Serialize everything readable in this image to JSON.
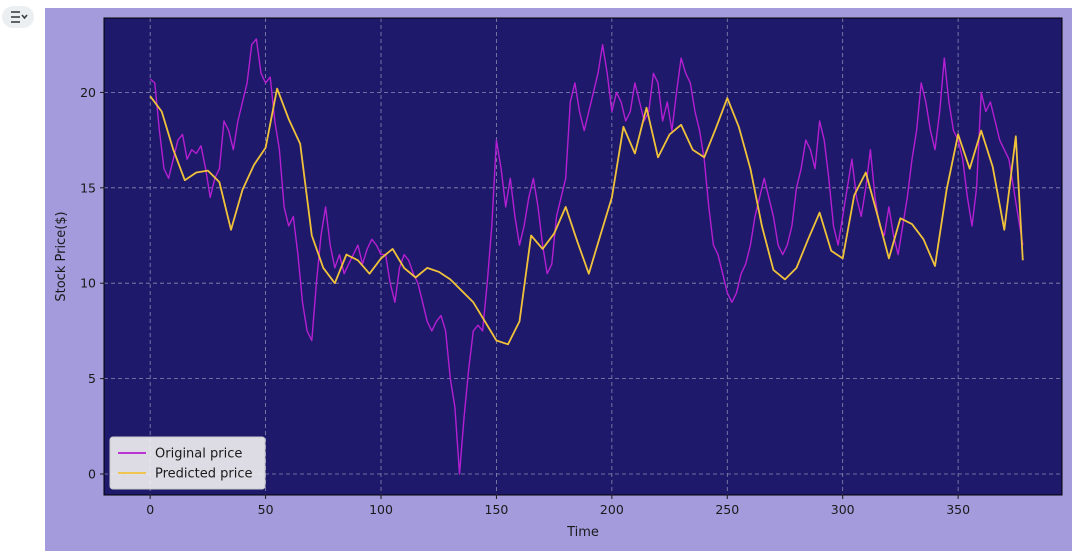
{
  "notebook": {
    "output_toggle_icon": "output-collapse-icon"
  },
  "chart_data": {
    "type": "line",
    "title": "",
    "xlabel": "Time",
    "ylabel": "Stock Price($)",
    "xlim": [
      -20,
      395
    ],
    "ylim": [
      -1.1,
      23.9
    ],
    "xticks": [
      0,
      50,
      100,
      150,
      200,
      250,
      300,
      350
    ],
    "yticks": [
      0,
      5,
      10,
      15,
      20
    ],
    "grid": true,
    "legend_position": "lower-left",
    "colors": {
      "figure_background": "#a49bdd",
      "axes_background": "#1e196b",
      "grid": "#8a8ab0",
      "original": "#b41fd1",
      "predicted": "#f0c23a"
    },
    "series": [
      {
        "name": "Original price",
        "color": "#b41fd1",
        "x": [
          0,
          2,
          4,
          6,
          8,
          10,
          12,
          14,
          16,
          18,
          20,
          22,
          24,
          26,
          28,
          30,
          32,
          34,
          36,
          38,
          40,
          42,
          44,
          46,
          48,
          50,
          52,
          54,
          56,
          58,
          60,
          62,
          64,
          66,
          68,
          70,
          72,
          74,
          76,
          78,
          80,
          82,
          84,
          86,
          88,
          90,
          92,
          94,
          96,
          98,
          100,
          102,
          104,
          106,
          108,
          110,
          112,
          114,
          116,
          118,
          120,
          122,
          124,
          126,
          128,
          130,
          132,
          134,
          136,
          138,
          140,
          142,
          144,
          146,
          148,
          150,
          152,
          154,
          156,
          158,
          160,
          162,
          164,
          166,
          168,
          170,
          172,
          174,
          176,
          178,
          180,
          182,
          184,
          186,
          188,
          190,
          192,
          194,
          196,
          198,
          200,
          202,
          204,
          206,
          208,
          210,
          212,
          214,
          216,
          218,
          220,
          222,
          224,
          226,
          228,
          230,
          232,
          234,
          236,
          238,
          240,
          242,
          244,
          246,
          248,
          250,
          252,
          254,
          256,
          258,
          260,
          262,
          264,
          266,
          268,
          270,
          272,
          274,
          276,
          278,
          280,
          282,
          284,
          286,
          288,
          290,
          292,
          294,
          296,
          298,
          300,
          302,
          304,
          306,
          308,
          310,
          312,
          314,
          316,
          318,
          320,
          322,
          324,
          326,
          328,
          330,
          332,
          334,
          336,
          338,
          340,
          342,
          344,
          346,
          348,
          350,
          352,
          354,
          356,
          358,
          360,
          362,
          364,
          366,
          368,
          370,
          372,
          374,
          376,
          378
        ],
        "y": [
          20.7,
          20.5,
          18.0,
          16.0,
          15.5,
          16.5,
          17.5,
          17.8,
          16.5,
          17.0,
          16.8,
          17.2,
          16.0,
          14.5,
          15.5,
          16.0,
          18.5,
          18.0,
          17.0,
          18.5,
          19.5,
          20.5,
          22.5,
          22.8,
          21.0,
          20.5,
          20.8,
          18.5,
          17.0,
          14.0,
          13.0,
          13.5,
          11.5,
          9.0,
          7.5,
          7.0,
          10.0,
          12.5,
          14.0,
          12.0,
          10.8,
          11.5,
          10.5,
          11.0,
          11.5,
          12.0,
          11.0,
          11.8,
          12.3,
          12.0,
          11.5,
          11.5,
          10.0,
          9.0,
          10.8,
          11.5,
          11.2,
          10.5,
          10.0,
          9.0,
          8.0,
          7.5,
          8.0,
          8.3,
          7.5,
          5.0,
          3.5,
          0.0,
          3.0,
          5.5,
          7.5,
          7.8,
          7.5,
          10.0,
          13.0,
          17.5,
          16.0,
          14.0,
          15.5,
          13.5,
          12.0,
          13.0,
          14.5,
          15.5,
          14.0,
          12.0,
          10.5,
          11.0,
          13.5,
          14.5,
          15.5,
          19.5,
          20.5,
          19.0,
          18.0,
          19.0,
          20.0,
          21.0,
          22.5,
          21.0,
          19.0,
          20.0,
          19.5,
          18.5,
          19.0,
          20.5,
          19.5,
          18.5,
          19.0,
          21.0,
          20.5,
          18.5,
          19.5,
          18.0,
          20.0,
          21.8,
          21.0,
          20.5,
          19.0,
          18.0,
          16.5,
          14.0,
          12.0,
          11.5,
          10.5,
          9.5,
          9.0,
          9.5,
          10.5,
          11.0,
          12.0,
          13.5,
          14.5,
          15.5,
          14.5,
          13.5,
          12.0,
          11.5,
          12.0,
          13.0,
          15.0,
          16.0,
          17.5,
          17.0,
          16.0,
          18.5,
          17.5,
          15.5,
          13.0,
          12.0,
          13.5,
          15.0,
          16.5,
          14.5,
          13.5,
          15.0,
          17.0,
          14.5,
          13.0,
          12.5,
          14.0,
          12.5,
          11.5,
          13.0,
          14.5,
          16.5,
          18.0,
          20.5,
          19.5,
          18.0,
          17.0,
          19.0,
          21.8,
          19.5,
          18.0,
          17.5,
          16.5,
          14.5,
          13.0,
          15.0,
          20.0,
          19.0,
          19.5,
          18.5,
          17.5,
          17.0,
          16.5,
          15.0,
          13.5,
          12.0
        ]
      },
      {
        "name": "Predicted price",
        "color": "#f0c23a",
        "x": [
          0,
          5,
          10,
          15,
          20,
          25,
          30,
          35,
          40,
          45,
          50,
          55,
          60,
          65,
          70,
          75,
          80,
          85,
          90,
          95,
          100,
          105,
          110,
          115,
          120,
          125,
          130,
          135,
          140,
          145,
          150,
          155,
          160,
          165,
          170,
          175,
          180,
          185,
          190,
          195,
          200,
          205,
          210,
          215,
          220,
          225,
          230,
          235,
          240,
          245,
          250,
          255,
          260,
          265,
          270,
          275,
          280,
          285,
          290,
          295,
          300,
          305,
          310,
          315,
          320,
          325,
          330,
          335,
          340,
          345,
          350,
          355,
          360,
          365,
          370,
          375,
          378
        ],
        "y": [
          19.8,
          19.0,
          17.0,
          15.4,
          15.8,
          15.9,
          15.3,
          12.8,
          14.9,
          16.2,
          17.1,
          20.2,
          18.6,
          17.3,
          12.5,
          10.8,
          10.0,
          11.5,
          11.2,
          10.5,
          11.3,
          11.8,
          10.8,
          10.3,
          10.8,
          10.6,
          10.2,
          9.6,
          9.0,
          8.0,
          7.0,
          6.8,
          8.0,
          12.5,
          11.8,
          12.6,
          14.0,
          12.2,
          10.5,
          12.5,
          14.5,
          18.2,
          16.8,
          19.2,
          16.6,
          17.8,
          18.3,
          17.0,
          16.6,
          18.1,
          19.7,
          18.2,
          16.0,
          13.0,
          10.7,
          10.2,
          10.8,
          12.3,
          13.7,
          11.7,
          11.3,
          14.6,
          15.8,
          13.6,
          11.3,
          13.4,
          13.1,
          12.3,
          10.9,
          14.9,
          17.8,
          16.0,
          18.0,
          16.1,
          12.8,
          17.7,
          11.2
        ]
      }
    ]
  }
}
